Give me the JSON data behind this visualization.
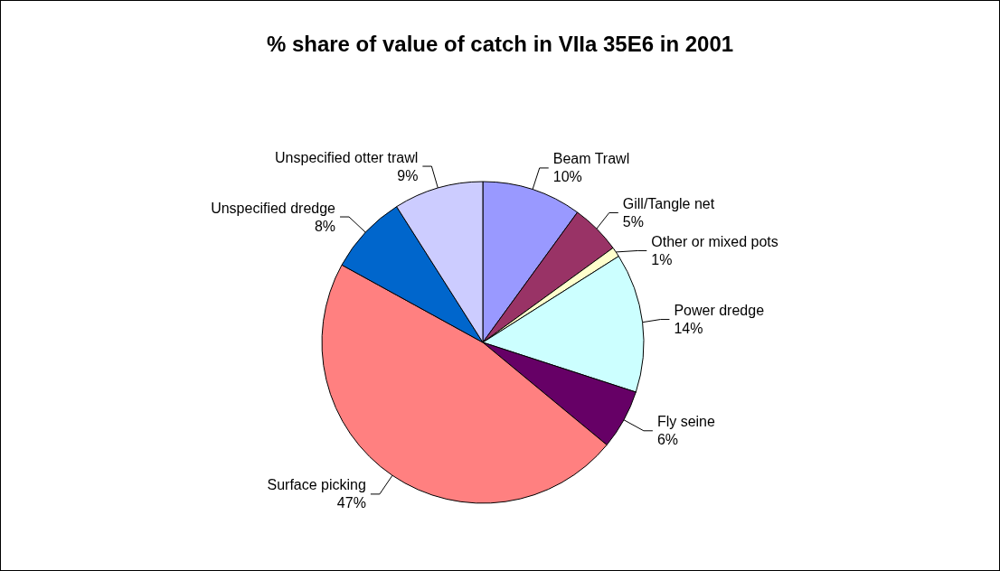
{
  "chart_data": {
    "type": "pie",
    "title": "% share of value of catch in VIIa 35E6 in 2001",
    "categories": [
      "Beam Trawl",
      "Gill/Tangle net",
      "Other or mixed pots",
      "Power dredge",
      "Fly seine",
      "Surface picking",
      "Unspecified dredge",
      "Unspecified otter trawl"
    ],
    "values": [
      10,
      5,
      1,
      14,
      6,
      47,
      8,
      9
    ],
    "value_labels": [
      "10%",
      "5%",
      "1%",
      "14%",
      "6%",
      "47%",
      "8%",
      "9%"
    ],
    "colors": [
      "#9999ff",
      "#993366",
      "#ffffcc",
      "#ccffff",
      "#660066",
      "#ff8080",
      "#0066cc",
      "#ccccff"
    ],
    "legend": false
  }
}
